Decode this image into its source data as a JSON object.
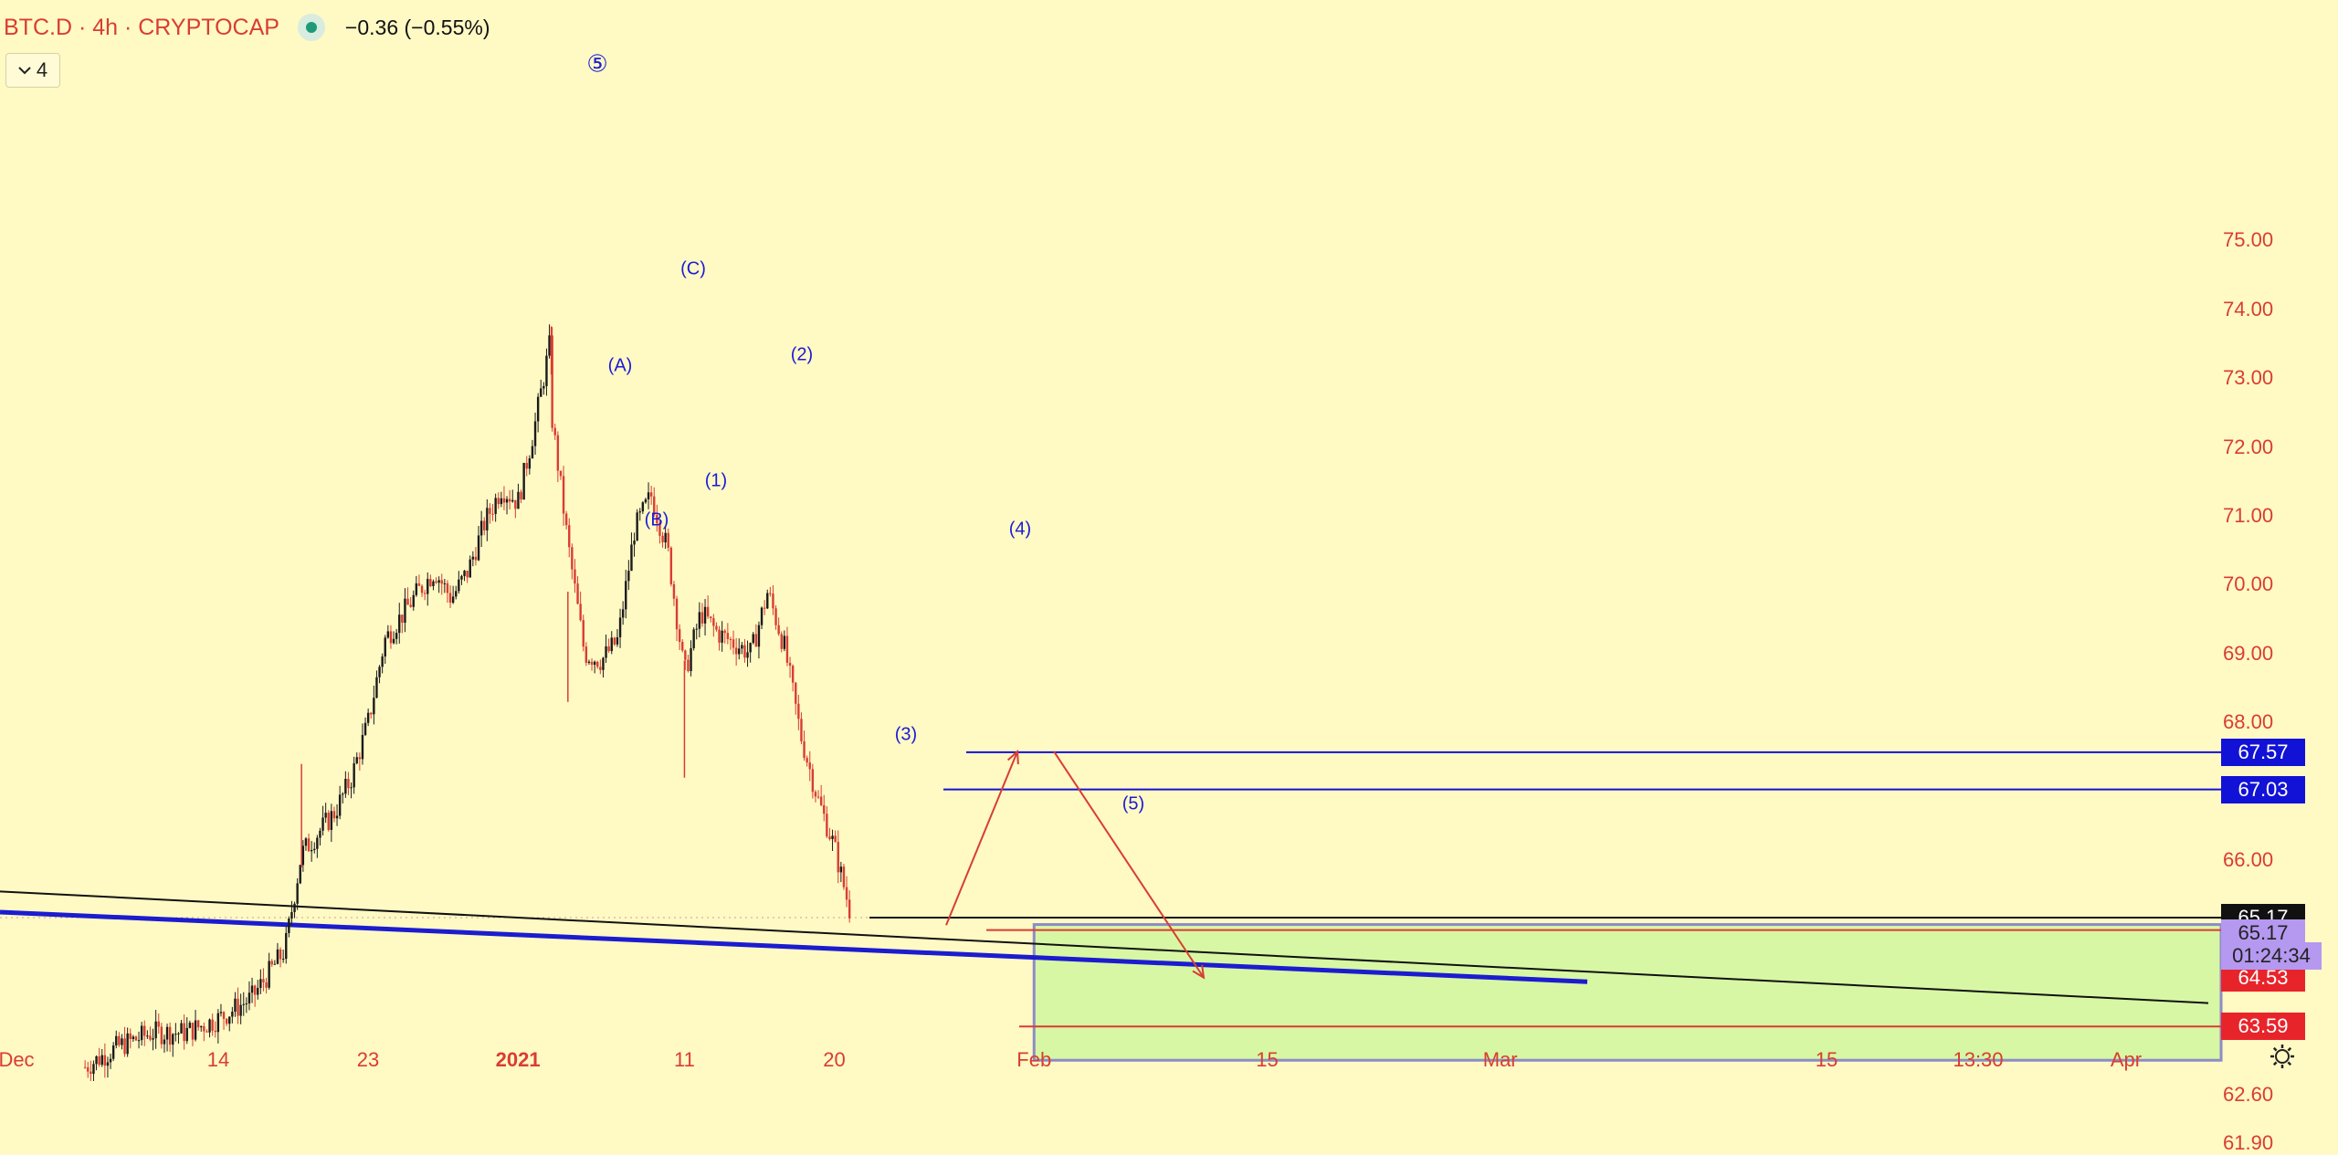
{
  "header": {
    "symbol": "BTC.D · 4h · CRYPTOCAP",
    "change": "−0.36 (−0.55%)",
    "status_color": "#1e9a76",
    "studies_count": "4"
  },
  "colors": {
    "background": "#fff9c4",
    "up": "#1a1a1a",
    "down": "#d93d33",
    "wave_labels": "#1b1bd6",
    "trendline_blue": "#1c1ccf",
    "trendline_black": "#111111",
    "arrows": "#d93d33",
    "zone_fill": "#d7f7a4",
    "zone_border": "#8c8cc8"
  },
  "chart_data": {
    "type": "candlestick",
    "title": "BTC.D · 4h · CRYPTOCAP",
    "y_axis": {
      "ticks": [
        "75.00",
        "74.00",
        "73.00",
        "72.00",
        "71.00",
        "70.00",
        "69.00",
        "68.00",
        "66.00",
        "62.60",
        "61.90"
      ],
      "range": [
        61.6,
        75.4
      ]
    },
    "x_axis": {
      "ticks": [
        {
          "label": "Dec",
          "bold": false
        },
        {
          "label": "14",
          "bold": false
        },
        {
          "label": "23",
          "bold": false
        },
        {
          "label": "2021",
          "bold": true
        },
        {
          "label": "11",
          "bold": false
        },
        {
          "label": "20",
          "bold": false
        },
        {
          "label": "Feb",
          "bold": false
        },
        {
          "label": "15",
          "bold": false
        },
        {
          "label": "Mar",
          "bold": false
        },
        {
          "label": "15",
          "bold": false
        },
        {
          "label": "13:30",
          "bold": false
        },
        {
          "label": "Apr",
          "bold": false
        }
      ]
    },
    "price_path": [
      [
        "Dec 6",
        63.0
      ],
      [
        "Dec 8",
        63.3
      ],
      [
        "Dec 10",
        63.5
      ],
      [
        "Dec 12",
        63.5
      ],
      [
        "Dec 14",
        63.7
      ],
      [
        "Dec 16",
        64.0
      ],
      [
        "Dec 18",
        64.7
      ],
      [
        "Dec 19",
        66.1
      ],
      [
        "Dec 21",
        66.7
      ],
      [
        "Dec 22",
        67.2
      ],
      [
        "Dec 23",
        68.0
      ],
      [
        "Dec 24",
        69.2
      ],
      [
        "Dec 26",
        69.9
      ],
      [
        "Dec 27",
        70.2
      ],
      [
        "Dec 28",
        69.8
      ],
      [
        "Dec 29",
        70.2
      ],
      [
        "Dec 30",
        70.9
      ],
      [
        "Dec 31",
        71.4
      ],
      [
        "Jan 1",
        71.2
      ],
      [
        "Jan 2",
        72.3
      ],
      [
        "Jan 3",
        73.6
      ],
      [
        "Jan 3",
        72.5
      ],
      [
        "Jan 4",
        70.6
      ],
      [
        "Jan 5",
        69.0
      ],
      [
        "Jan 6",
        68.9
      ],
      [
        "Jan 7",
        69.2
      ],
      [
        "Jan 8",
        70.8
      ],
      [
        "Jan 9",
        71.3
      ],
      [
        "Jan 10",
        70.5
      ],
      [
        "Jan 11",
        68.7
      ],
      [
        "Jan 12",
        69.6
      ],
      [
        "Jan 13",
        69.3
      ],
      [
        "Jan 15",
        69.0
      ],
      [
        "Jan 16",
        69.9
      ],
      [
        "Jan 17",
        69.1
      ],
      [
        "Jan 18",
        67.8
      ],
      [
        "Jan 19",
        66.9
      ],
      [
        "Jan 20",
        66.2
      ],
      [
        "Jan 21",
        65.2
      ]
    ],
    "price_levels": [
      {
        "value": "67.57",
        "label_bg": "#1212d6"
      },
      {
        "value": "67.03",
        "label_bg": "#1212d6"
      },
      {
        "value": "65.17",
        "label_bg": "#111111"
      },
      {
        "value": "65.17",
        "label_bg": "#b598f0"
      },
      {
        "value": "64.53",
        "label_bg": "#e8242b"
      },
      {
        "value": "63.59",
        "label_bg": "#e8242b"
      }
    ],
    "countdown": "01:24:34",
    "wave_labels": [
      "⑤",
      "(A)",
      "(B)",
      "(C)",
      "(1)",
      "(2)",
      "(3)",
      "(4)",
      "(5)"
    ]
  }
}
